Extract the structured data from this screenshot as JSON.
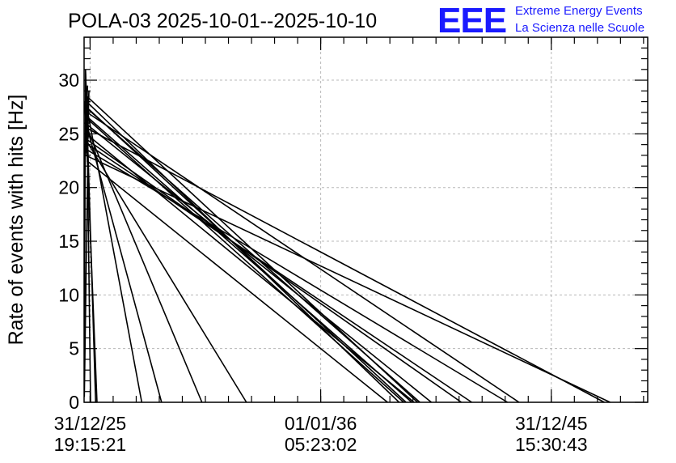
{
  "chart_data": {
    "type": "line",
    "title": "POLA-03 2025-10-01--2025-10-10",
    "ylabel": "Rate of events with hits [Hz]",
    "xlabel": "",
    "ylim": [
      0,
      34
    ],
    "yticks": [
      0,
      5,
      10,
      15,
      20,
      25,
      30
    ],
    "xlim_years": [
      2025.74,
      2050.18
    ],
    "xticks": [
      {
        "x_year": 2026.0,
        "date": "31/12/25",
        "time": "19:15:21"
      },
      {
        "x_year": 2036.0,
        "date": "01/01/36",
        "time": "05:23:02"
      },
      {
        "x_year": 2046.0,
        "date": "31/12/45",
        "time": "15:30:43"
      }
    ],
    "grid": true,
    "series": [
      {
        "x": [
          2025.75,
          2025.8,
          2025.9,
          2025.95,
          2025.85,
          2025.78,
          2025.92,
          2025.88,
          2025.82,
          2025.93,
          2025.87,
          2025.79,
          2025.91,
          2025.84,
          2025.89,
          2025.76,
          2025.94,
          2025.86,
          2025.81,
          2025.83,
          2025.77,
          2025.88,
          2025.9,
          2025.75
        ],
        "y": [
          1.5,
          31.0,
          25.0,
          29.0,
          23.5,
          27.5,
          26.0,
          28.5,
          24.5,
          27.0,
          25.5,
          28.0,
          24.0,
          26.5,
          29.5,
          22.5,
          25.0,
          27.5,
          26.0,
          24.0,
          28.0,
          25.5,
          23.0,
          0.5
        ]
      }
    ],
    "segments": [
      {
        "from": [
          2025.8,
          31.0
        ],
        "to": [
          2026.24,
          0
        ]
      },
      {
        "from": [
          2025.85,
          29.0
        ],
        "to": [
          2026.02,
          0
        ]
      },
      {
        "from": [
          2025.78,
          28.0
        ],
        "to": [
          2026.3,
          0
        ]
      },
      {
        "from": [
          2025.9,
          27.0
        ],
        "to": [
          2028.24,
          0
        ]
      },
      {
        "from": [
          2025.82,
          26.0
        ],
        "to": [
          2029.1,
          0
        ]
      },
      {
        "from": [
          2025.88,
          25.5
        ],
        "to": [
          2030.85,
          0
        ]
      },
      {
        "from": [
          2025.8,
          24.5
        ],
        "to": [
          2032.78,
          0
        ]
      },
      {
        "from": [
          2025.84,
          27.5
        ],
        "to": [
          2039.7,
          0
        ]
      },
      {
        "from": [
          2025.92,
          26.5
        ],
        "to": [
          2039.95,
          0
        ]
      },
      {
        "from": [
          2025.86,
          28.5
        ],
        "to": [
          2040.2,
          0
        ]
      },
      {
        "from": [
          2025.83,
          25.0
        ],
        "to": [
          2040.05,
          0
        ]
      },
      {
        "from": [
          2025.79,
          26.0
        ],
        "to": [
          2040.8,
          0
        ]
      },
      {
        "from": [
          2025.91,
          24.0
        ],
        "to": [
          2042.55,
          0
        ]
      },
      {
        "from": [
          2025.87,
          27.0
        ],
        "to": [
          2044.6,
          0
        ]
      },
      {
        "from": [
          2025.81,
          23.0
        ],
        "to": [
          2048.55,
          0
        ]
      },
      {
        "from": [
          2025.89,
          25.5
        ],
        "to": [
          2048.3,
          0
        ]
      },
      {
        "from": [
          2025.85,
          28.0
        ],
        "to": [
          2039.4,
          0
        ]
      },
      {
        "from": [
          2025.83,
          26.5
        ],
        "to": [
          2039.6,
          0
        ]
      },
      {
        "from": [
          2025.86,
          22.5
        ],
        "to": [
          2038.9,
          0
        ]
      },
      {
        "from": [
          2025.8,
          27.5
        ],
        "to": [
          2040.3,
          0
        ]
      },
      {
        "from": [
          2025.88,
          23.5
        ],
        "to": [
          2044.1,
          0
        ]
      },
      {
        "from": [
          2025.84,
          24.5
        ],
        "to": [
          2042.1,
          0
        ]
      }
    ]
  },
  "logo": {
    "letters": "EEE",
    "line1": "Extreme Energy Events",
    "line2": "La Scienza nelle Scuole"
  }
}
